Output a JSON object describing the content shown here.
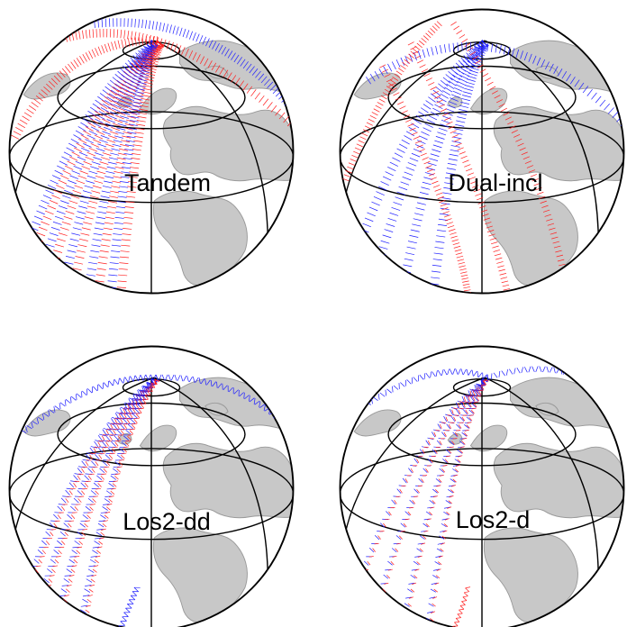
{
  "panels": [
    {
      "label": "Tandem",
      "pattern": "tandem"
    },
    {
      "label": "Dual-incl",
      "pattern": "dual"
    },
    {
      "label": "Los2-dd",
      "pattern": "dd"
    },
    {
      "label": "Los2-d",
      "pattern": "d"
    }
  ],
  "colors": {
    "track_a": "#2020ff",
    "track_b": "#ff2020",
    "land": "#c8c8c8",
    "grid": "#000000"
  }
}
